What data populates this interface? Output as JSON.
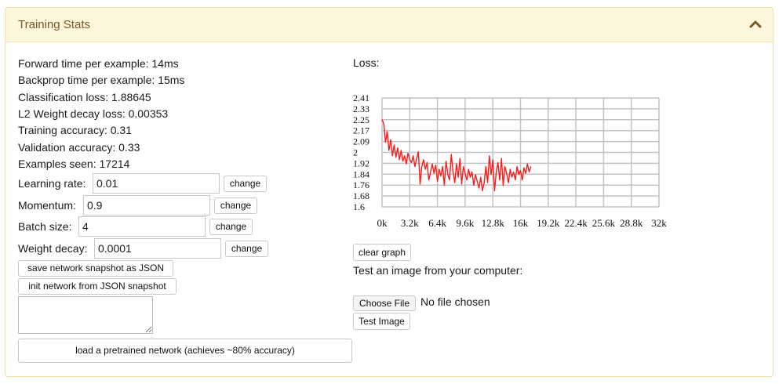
{
  "panel": {
    "title": "Training Stats",
    "collapse_icon": "chevron-up-icon"
  },
  "stats": {
    "forward_time": "Forward time per example: 14ms",
    "backprop_time": "Backprop time per example: 15ms",
    "classification_loss": "Classification loss: 1.88645",
    "l2_loss": "L2 Weight decay loss: 0.00353",
    "training_accuracy": "Training accuracy: 0.31",
    "validation_accuracy": "Validation accuracy: 0.33",
    "examples_seen": "Examples seen: 17214"
  },
  "params": {
    "learning_rate": {
      "label": "Learning rate:",
      "value": "0.01"
    },
    "momentum": {
      "label": "Momentum:",
      "value": "0.9"
    },
    "batch_size": {
      "label": "Batch size:",
      "value": "4"
    },
    "weight_decay": {
      "label": "Weight decay:",
      "value": "0.0001"
    },
    "change_label": "change"
  },
  "buttons": {
    "save_snapshot": "save network snapshot as JSON",
    "init_snapshot": "init network from JSON snapshot",
    "load_pretrained": "load a pretrained network (achieves ~80% accuracy)",
    "clear_graph": "clear graph",
    "choose_file": "Choose File",
    "test_image": "Test Image"
  },
  "loss_title": "Loss:",
  "test_label": "Test an image from your computer:",
  "no_file_text": "No file chosen",
  "chart_data": {
    "type": "line",
    "title": "",
    "xlabel": "",
    "ylabel": "",
    "xlim": [
      0,
      32000
    ],
    "ylim": [
      1.6,
      2.41
    ],
    "x_ticks": [
      "0k",
      "3.2k",
      "6.4k",
      "9.6k",
      "12.8k",
      "16k",
      "19.2k",
      "22.4k",
      "25.6k",
      "28.8k",
      "32k"
    ],
    "y_ticks": [
      "2.41",
      "2.33",
      "2.25",
      "2.17",
      "2.09",
      "2",
      "1.92",
      "1.84",
      "1.76",
      "1.68",
      "1.6"
    ],
    "grid": true,
    "line_color": "#ff1a1a",
    "series": [
      {
        "x": [
          0,
          200,
          400,
          600,
          800,
          1000,
          1200,
          1400,
          1600,
          1800,
          2000,
          2200,
          2400,
          2600,
          2800,
          3000,
          3200,
          3400,
          3600,
          3800,
          4000,
          4200,
          4400,
          4600,
          4800,
          5000,
          5200,
          5400,
          5600,
          5800,
          6000,
          6200,
          6400,
          6600,
          6800,
          7000,
          7200,
          7400,
          7600,
          7800,
          8000,
          8200,
          8400,
          8600,
          8800,
          9000,
          9200,
          9400,
          9600,
          9800,
          10000,
          10200,
          10400,
          10600,
          10800,
          11000,
          11200,
          11400,
          11600,
          11800,
          12000,
          12200,
          12400,
          12600,
          12800,
          13000,
          13200,
          13400,
          13600,
          13800,
          14000,
          14200,
          14400,
          14600,
          14800,
          15000,
          15200,
          15400,
          15600,
          15800,
          16000,
          16200,
          16400,
          16600,
          16800,
          17000,
          17200
        ],
        "y": [
          2.25,
          2.22,
          2.08,
          2.16,
          2.02,
          2.1,
          1.98,
          2.06,
          1.97,
          2.04,
          1.95,
          2.02,
          1.94,
          1.98,
          1.92,
          2.0,
          1.95,
          1.93,
          1.98,
          1.9,
          1.96,
          2.01,
          1.77,
          1.9,
          1.95,
          1.88,
          1.93,
          1.8,
          1.86,
          1.92,
          1.85,
          1.91,
          1.79,
          1.88,
          1.83,
          1.9,
          1.76,
          1.94,
          1.84,
          1.8,
          1.99,
          1.86,
          1.78,
          1.92,
          1.82,
          1.96,
          1.77,
          1.9,
          1.85,
          1.8,
          1.88,
          1.82,
          1.86,
          1.76,
          1.84,
          1.79,
          1.74,
          1.82,
          1.72,
          1.78,
          1.9,
          1.78,
          1.98,
          1.84,
          1.95,
          1.72,
          1.86,
          1.93,
          1.8,
          1.96,
          1.76,
          1.9,
          1.85,
          1.78,
          1.88,
          1.82,
          1.86,
          1.8,
          1.9,
          1.84,
          1.87,
          1.8,
          1.89,
          1.85,
          1.92,
          1.86,
          1.9
        ]
      }
    ]
  }
}
